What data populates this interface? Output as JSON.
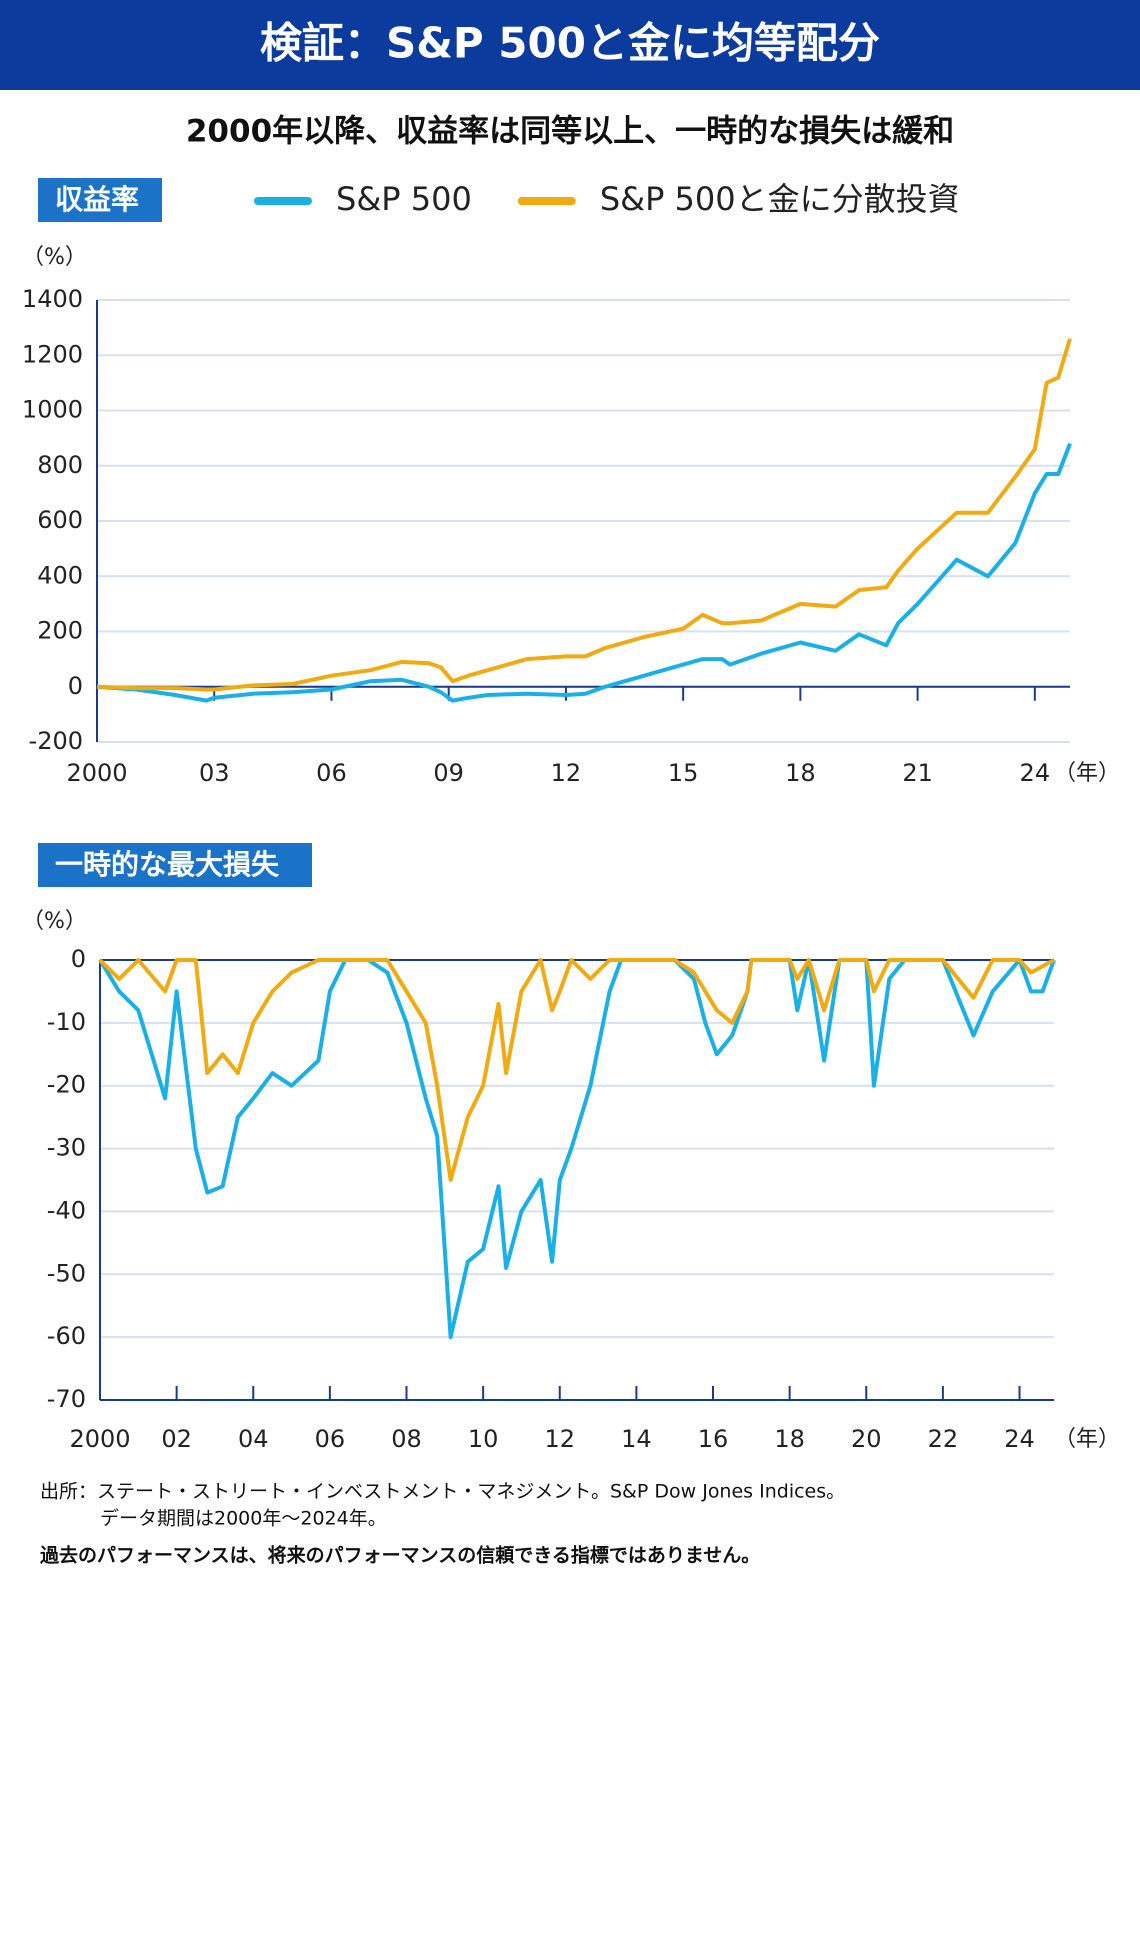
{
  "header": {
    "title": "検証：S&P 500と金に均等配分",
    "subtitle": "2000年以降、収益率は同等以上、一時的な損失は緩和"
  },
  "chart_data": [
    {
      "type": "line",
      "title": "収益率",
      "y_label": "（%）",
      "x_label": "（年）",
      "grid": true,
      "xlim": [
        2000,
        2024.9
      ],
      "ylim": [
        -200,
        1400
      ],
      "xticks": [
        2000,
        {
          "value": 2003,
          "label": "03"
        },
        {
          "value": 2006,
          "label": "06"
        },
        {
          "value": 2009,
          "label": "09"
        },
        {
          "value": 2012,
          "label": "12"
        },
        {
          "value": 2015,
          "label": "15"
        },
        {
          "value": 2018,
          "label": "18"
        },
        {
          "value": 2021,
          "label": "21"
        },
        {
          "value": 2024,
          "label": "24"
        }
      ],
      "yticks": [
        -200,
        0,
        200,
        400,
        600,
        800,
        1000,
        1200,
        1400
      ],
      "x": [
        2000,
        2001,
        2002,
        2002.8,
        2003,
        2004,
        2005,
        2006,
        2007,
        2007.8,
        2008.5,
        2008.8,
        2009.1,
        2009.5,
        2010,
        2011,
        2012,
        2012.5,
        2013,
        2014,
        2015,
        2015.5,
        2016,
        2016.2,
        2017,
        2018,
        2018.9,
        2019.5,
        2020.2,
        2020.5,
        2021,
        2022,
        2022.8,
        2023.5,
        2024,
        2024.3,
        2024.6,
        2024.9
      ],
      "series": [
        {
          "name": "S&P 500",
          "color": "#1ab0e6",
          "values": [
            0,
            -10,
            -30,
            -50,
            -40,
            -25,
            -20,
            -10,
            20,
            25,
            0,
            -20,
            -50,
            -40,
            -30,
            -25,
            -30,
            -25,
            0,
            40,
            80,
            100,
            100,
            80,
            120,
            160,
            130,
            190,
            150,
            230,
            300,
            460,
            400,
            520,
            700,
            770,
            770,
            880
          ]
        },
        {
          "name": "S&P 500と金に分散投資",
          "color": "#f0aa12",
          "values": [
            0,
            -5,
            -5,
            -10,
            -10,
            5,
            10,
            40,
            60,
            90,
            85,
            70,
            20,
            40,
            60,
            100,
            110,
            110,
            140,
            180,
            210,
            260,
            230,
            230,
            240,
            300,
            290,
            350,
            360,
            420,
            500,
            630,
            630,
            760,
            860,
            1100,
            1120,
            1260
          ]
        }
      ]
    },
    {
      "type": "line",
      "title": "一時的な最大損失",
      "y_label": "（%）",
      "x_label": "（年）",
      "grid": true,
      "xlim": [
        2000,
        2024.9
      ],
      "ylim": [
        -70,
        0
      ],
      "xticks": [
        2000,
        {
          "value": 2002,
          "label": "02"
        },
        {
          "value": 2004,
          "label": "04"
        },
        {
          "value": 2006,
          "label": "06"
        },
        {
          "value": 2008,
          "label": "08"
        },
        {
          "value": 2010,
          "label": "10"
        },
        {
          "value": 2012,
          "label": "12"
        },
        {
          "value": 2014,
          "label": "14"
        },
        {
          "value": 2016,
          "label": "16"
        },
        {
          "value": 2018,
          "label": "18"
        },
        {
          "value": 2020,
          "label": "20"
        },
        {
          "value": 2022,
          "label": "22"
        },
        {
          "value": 2024,
          "label": "24"
        }
      ],
      "yticks": [
        -70,
        -60,
        -50,
        -40,
        -30,
        -20,
        -10,
        0
      ],
      "x": [
        2000,
        2000.5,
        2001,
        2001.7,
        2002,
        2002.5,
        2002.8,
        2003.2,
        2003.6,
        2004,
        2004.5,
        2005,
        2005.7,
        2006,
        2006.4,
        2007,
        2007.5,
        2008,
        2008.5,
        2008.8,
        2009.15,
        2009.6,
        2010,
        2010.4,
        2010.6,
        2011,
        2011.5,
        2011.8,
        2012,
        2012.3,
        2012.8,
        2013.3,
        2013.6,
        2014,
        2015,
        2015.5,
        2015.8,
        2016.1,
        2016.5,
        2016.9,
        2017,
        2018,
        2018.2,
        2018.5,
        2018.9,
        2019.3,
        2020,
        2020.2,
        2020.6,
        2021,
        2022,
        2022.8,
        2023.3,
        2024,
        2024.3,
        2024.6,
        2024.9
      ],
      "series": [
        {
          "color": "#1ab0e6",
          "values": [
            0,
            -5,
            -8,
            -22,
            -5,
            -30,
            -37,
            -36,
            -25,
            -22,
            -18,
            -20,
            -16,
            -5,
            0,
            0,
            -2,
            -10,
            -22,
            -28,
            -60,
            -48,
            -46,
            -36,
            -49,
            -40,
            -35,
            -48,
            -35,
            -30,
            -20,
            -5,
            0,
            0,
            0,
            -3,
            -10,
            -15,
            -12,
            -5,
            0,
            0,
            -8,
            0,
            -16,
            0,
            0,
            -20,
            -3,
            0,
            0,
            -12,
            -5,
            0,
            -5,
            -5,
            0
          ]
        },
        {
          "color": "#f0aa12",
          "values": [
            0,
            -3,
            0,
            -5,
            0,
            0,
            -18,
            -15,
            -18,
            -10,
            -5,
            -2,
            0,
            0,
            0,
            0,
            0,
            -5,
            -10,
            -20,
            -35,
            -25,
            -20,
            -7,
            -18,
            -5,
            0,
            -8,
            -5,
            0,
            -3,
            0,
            0,
            0,
            0,
            -2,
            -5,
            -8,
            -10,
            -5,
            0,
            0,
            -3,
            0,
            -8,
            0,
            0,
            -5,
            0,
            0,
            0,
            -6,
            0,
            0,
            -2,
            -1,
            0
          ]
        }
      ]
    }
  ],
  "footer": {
    "source": "出所：ステート・ストリート・インベストメント・マネジメント。S&P Dow Jones Indices。",
    "period": "データ期間は2000年～2024年。",
    "disclaimer": "過去のパフォーマンスは、将来のパフォーマンスの信頼できる指標ではありません。"
  }
}
